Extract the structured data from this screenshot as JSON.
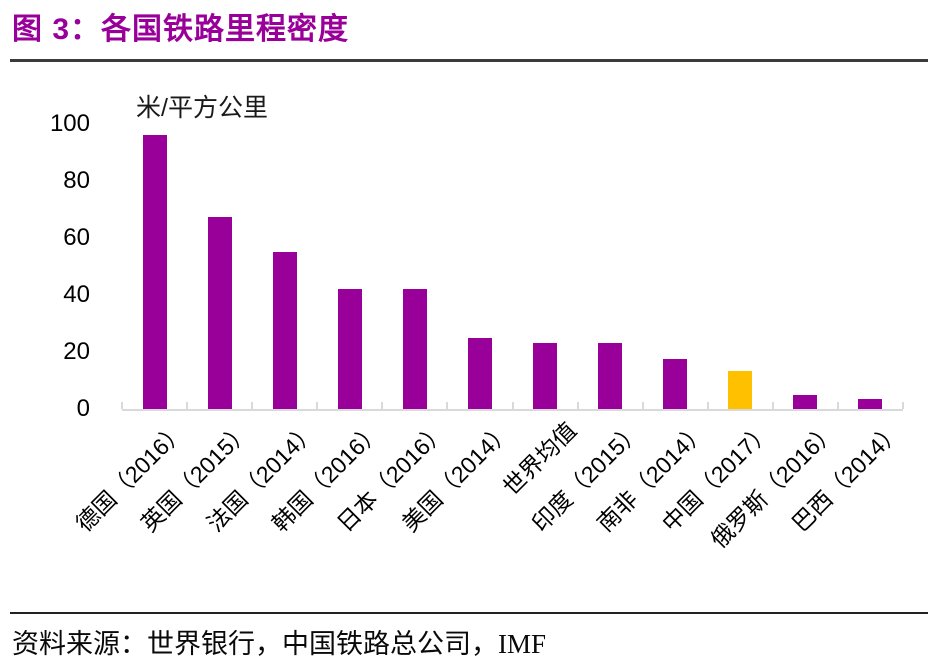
{
  "header": {
    "title": "图 3：各国铁路里程密度"
  },
  "chart_data": {
    "type": "bar",
    "title": "各国铁路里程密度",
    "unit_label": "米/平方公里",
    "categories": [
      "德国（2016）",
      "英国（2015）",
      "法国（2014）",
      "韩国（2016）",
      "日本（2016）",
      "美国（2014）",
      "世界均值",
      "印度（2015）",
      "南非（2014）",
      "中国（2017）",
      "俄罗斯（2016）",
      "巴西（2014）"
    ],
    "values": [
      96,
      67.5,
      55,
      42,
      42,
      25,
      23,
      23,
      17.5,
      13.5,
      5,
      3.5
    ],
    "highlight_index": 9,
    "highlight_category": "中国（2017）",
    "y_ticks": [
      0,
      20,
      40,
      60,
      80,
      100
    ],
    "ylim": [
      0,
      100
    ],
    "xlabel": "",
    "ylabel": "米/平方公里",
    "grid": "off",
    "legend": "none",
    "colors": {
      "bar": "#990099",
      "highlight": "#ffc000",
      "axis": "#d9d9d9",
      "title": "#990099"
    }
  },
  "footer": {
    "source": "资料来源：世界银行，中国铁路总公司，IMF"
  }
}
